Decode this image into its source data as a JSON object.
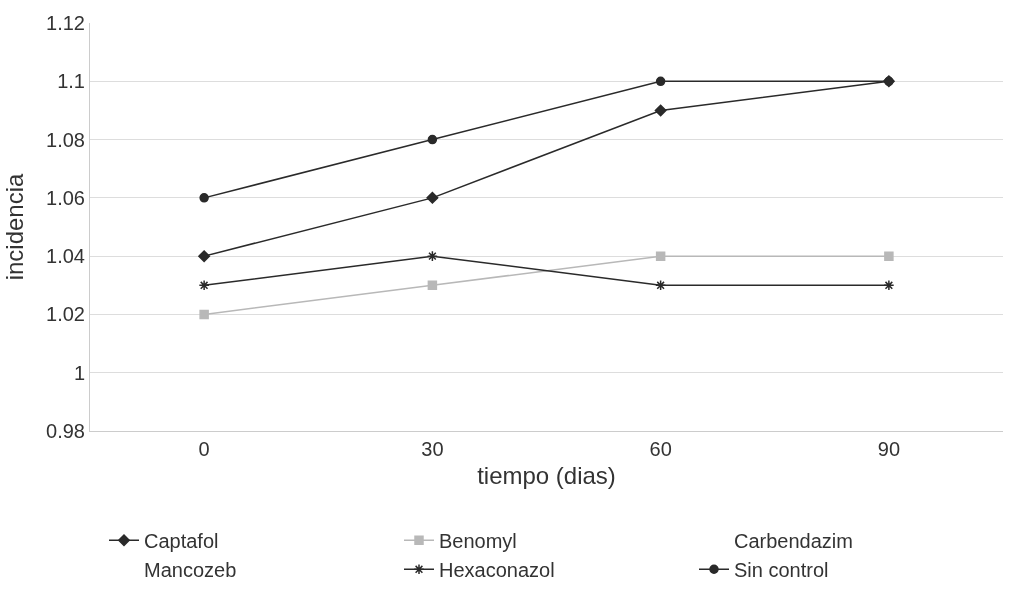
{
  "chart_data": {
    "type": "line",
    "xlabel": "tiempo (dias)",
    "ylabel": "incidencia",
    "categories": [
      "0",
      "30",
      "60",
      "90"
    ],
    "series": [
      {
        "name": "Captafol",
        "color": "#2a2a2a",
        "marker": "diamond",
        "values": [
          1.04,
          1.06,
          1.09,
          1.1
        ]
      },
      {
        "name": "Benomyl",
        "color": "#b8b8b8",
        "marker": "square",
        "values": [
          1.02,
          1.03,
          1.04,
          1.04
        ]
      },
      {
        "name": "Carbendazim",
        "marker": "none",
        "values": [
          null,
          null,
          null,
          null
        ]
      },
      {
        "name": "Mancozeb",
        "marker": "none",
        "values": [
          null,
          null,
          null,
          null
        ]
      },
      {
        "name": "Hexaconazol",
        "color": "#2a2a2a",
        "marker": "cross",
        "values": [
          1.03,
          1.04,
          1.03,
          1.03
        ]
      },
      {
        "name": "Sin control",
        "color": "#2a2a2a",
        "marker": "circle",
        "values": [
          1.06,
          1.08,
          1.1,
          1.1
        ]
      }
    ],
    "ylim": [
      0.98,
      1.12
    ],
    "yticks": [
      0.98,
      1,
      1.02,
      1.04,
      1.06,
      1.08,
      1.1,
      1.12
    ],
    "grid": "y",
    "legend": "bottom"
  }
}
